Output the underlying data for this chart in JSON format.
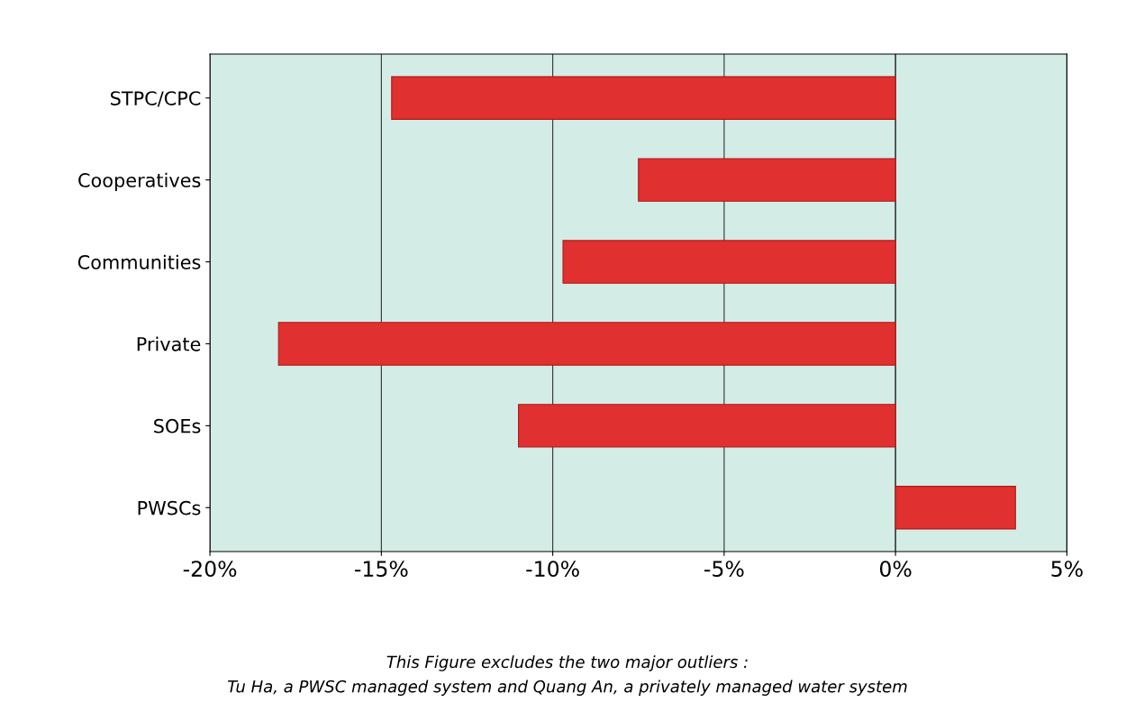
{
  "chart_data": {
    "type": "bar",
    "orientation": "horizontal",
    "categories": [
      "STPC/CPC",
      "Cooperatives",
      "Communities",
      "Private",
      "SOEs",
      "PWSCs"
    ],
    "values": [
      -14.7,
      -7.5,
      -9.7,
      -18.0,
      -11.0,
      3.5
    ],
    "color": "#e0302f",
    "xlim": [
      -20,
      5
    ],
    "xticks": [
      {
        "value": -20,
        "label": "-20%"
      },
      {
        "value": -15,
        "label": "-15%"
      },
      {
        "value": -10,
        "label": "-10%"
      },
      {
        "value": -5,
        "label": "-5%"
      },
      {
        "value": 0,
        "label": "0%"
      },
      {
        "value": 5,
        "label": "5%"
      }
    ],
    "grid": "x",
    "legend": false,
    "annotations": [
      "This Figure excludes the two major outliers :",
      "Tu Ha, a PWSC managed system and Quang An, a privately managed water system"
    ]
  }
}
